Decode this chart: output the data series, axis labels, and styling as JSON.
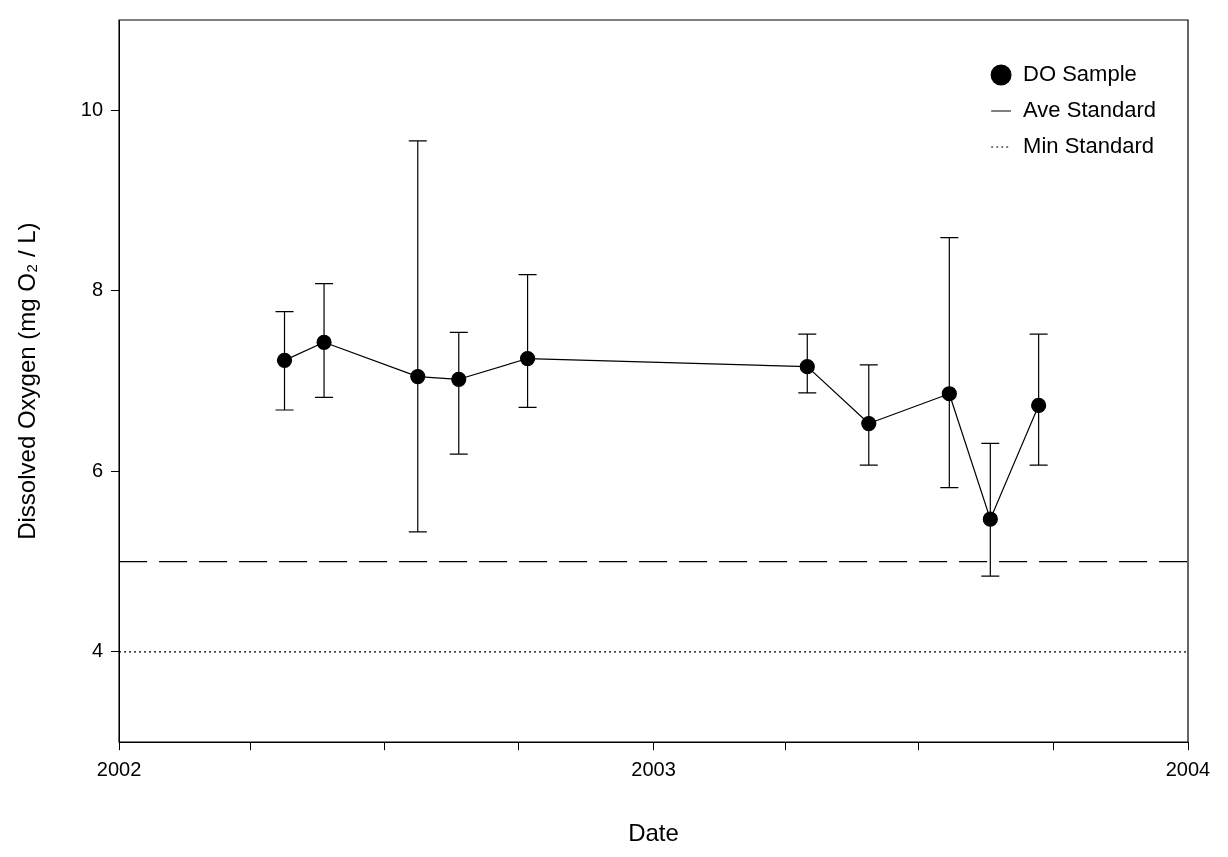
{
  "chart_data": {
    "type": "line",
    "xlabel": "Date",
    "ylabel": "Dissolved Oxygen (mg O₂ / L)",
    "x": [
      "2002-04-24",
      "2002-05-21",
      "2002-07-24",
      "2002-08-21",
      "2002-10-07",
      "2003-04-16",
      "2003-05-28",
      "2003-07-22",
      "2003-08-19",
      "2003-09-21"
    ],
    "series": [
      {
        "name": "DO Sample",
        "color": "#000000",
        "marker": "circle",
        "line_style": "solid",
        "values": [
          7.23,
          7.43,
          7.05,
          7.02,
          7.25,
          7.16,
          6.53,
          6.86,
          5.47,
          6.73
        ],
        "errors": [
          [
            6.68,
            7.77
          ],
          [
            6.82,
            8.08
          ],
          [
            5.33,
            9.66
          ],
          [
            6.19,
            7.54
          ],
          [
            6.71,
            8.18
          ],
          [
            6.87,
            7.52
          ],
          [
            6.07,
            7.18
          ],
          [
            5.82,
            8.59
          ],
          [
            4.84,
            6.31
          ],
          [
            6.07,
            7.52
          ]
        ]
      }
    ],
    "ref_lines": [
      {
        "axis": "y",
        "value": 5,
        "label": "Ave Standard",
        "color": "#000000",
        "line_style": "dashed"
      },
      {
        "axis": "y",
        "value": 4,
        "label": "Min Standard",
        "color": "#000000",
        "line_style": "dotted"
      }
    ],
    "xlim": [
      "2002-01-01",
      "2004-01-01"
    ],
    "xticks": [
      {
        "value": "2002-01-01",
        "label": "2002"
      },
      {
        "value": "2002-04-01",
        "label": null
      },
      {
        "value": "2002-07-01",
        "label": null
      },
      {
        "value": "2002-10-01",
        "label": null
      },
      {
        "value": "2003-01-01",
        "label": "2003"
      },
      {
        "value": "2003-04-01",
        "label": null
      },
      {
        "value": "2003-07-01",
        "label": null
      },
      {
        "value": "2003-10-01",
        "label": null
      },
      {
        "value": "2004-01-01",
        "label": "2004"
      }
    ],
    "ylim": [
      3,
      11
    ],
    "yticks": [
      4,
      6,
      8,
      10
    ],
    "grid": false,
    "legend": "top right"
  }
}
